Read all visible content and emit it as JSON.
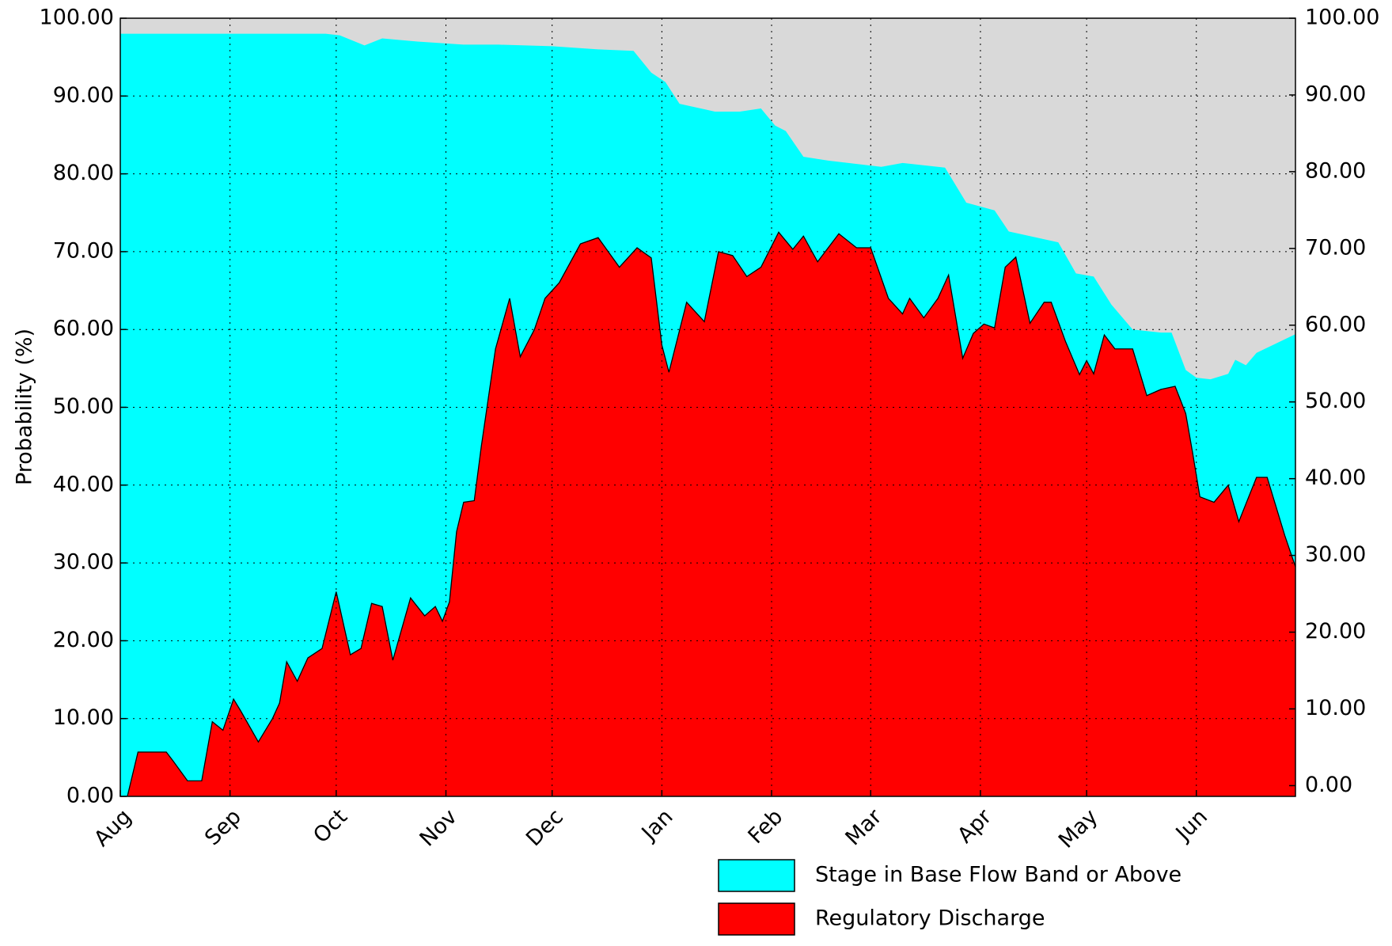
{
  "chart_data": {
    "type": "area",
    "ylabel": "Probability  (%)",
    "xlim": [
      0,
      332
    ],
    "xticks": [
      {
        "value": 0,
        "label": "Aug"
      },
      {
        "value": 31,
        "label": "Sep"
      },
      {
        "value": 61,
        "label": "Oct"
      },
      {
        "value": 92,
        "label": "Nov"
      },
      {
        "value": 122,
        "label": "Dec"
      },
      {
        "value": 153,
        "label": "Jan"
      },
      {
        "value": 184,
        "label": "Feb"
      },
      {
        "value": 212,
        "label": "Mar"
      },
      {
        "value": 243,
        "label": "Apr"
      },
      {
        "value": 273,
        "label": "May"
      },
      {
        "value": 304,
        "label": "Jun"
      }
    ],
    "ylim": [
      0,
      100
    ],
    "yticks": [
      {
        "value": 0,
        "label": "0.00"
      },
      {
        "value": 10,
        "label": "10.00"
      },
      {
        "value": 20,
        "label": "20.00"
      },
      {
        "value": 30,
        "label": "30.00"
      },
      {
        "value": 40,
        "label": "40.00"
      },
      {
        "value": 50,
        "label": "50.00"
      },
      {
        "value": 60,
        "label": "60.00"
      },
      {
        "value": 70,
        "label": "70.00"
      },
      {
        "value": 80,
        "label": "80.00"
      },
      {
        "value": 90,
        "label": "90.00"
      },
      {
        "value": 100,
        "label": "100.00"
      }
    ],
    "y2lim": [
      -1.4,
      100
    ],
    "y2ticks": [
      {
        "value": 0,
        "label": "0.00"
      },
      {
        "value": 10,
        "label": "10.00"
      },
      {
        "value": 20,
        "label": "20.00"
      },
      {
        "value": 30,
        "label": "30.00"
      },
      {
        "value": 40,
        "label": "40.00"
      },
      {
        "value": 50,
        "label": "50.00"
      },
      {
        "value": 60,
        "label": "60.00"
      },
      {
        "value": 70,
        "label": "70.00"
      },
      {
        "value": 80,
        "label": "80.00"
      },
      {
        "value": 90,
        "label": "90.00"
      },
      {
        "value": 100,
        "label": "100.00"
      }
    ],
    "grid": true,
    "background": "#d9d9d9",
    "legend": "below right",
    "series": [
      {
        "name": "Stage in Base Flow Band or Above",
        "color": "#00ffff",
        "x": [
          0,
          58,
          62,
          69,
          74,
          84,
          97,
          107,
          122,
          135,
          145,
          150,
          154,
          158,
          168,
          175,
          181,
          185,
          188,
          193,
          200,
          215,
          221,
          233,
          239,
          247,
          251,
          265,
          270,
          275,
          280,
          286,
          294,
          297,
          301,
          304,
          308,
          313,
          315,
          318,
          321,
          332
        ],
        "values": [
          98,
          98,
          97.8,
          96.5,
          97.4,
          97,
          96.6,
          96.6,
          96.4,
          96,
          95.8,
          93,
          91.8,
          89,
          88,
          88,
          88.4,
          86.2,
          85.5,
          82.2,
          81.7,
          80.9,
          81.4,
          80.8,
          76.3,
          75.3,
          72.6,
          71.2,
          67.2,
          66.8,
          63.2,
          60,
          59.6,
          59.6,
          54.8,
          53.8,
          53.6,
          54.3,
          56.1,
          55.4,
          57,
          59.4
        ]
      },
      {
        "name": "Regulatory Discharge",
        "color": "#ff0000",
        "x": [
          2,
          5,
          13,
          15,
          19,
          23,
          26,
          29,
          32,
          34,
          39,
          43,
          45,
          47,
          50,
          53,
          57,
          61,
          65,
          68,
          71,
          74,
          77,
          82,
          86,
          89,
          91,
          93,
          95,
          97,
          100,
          102,
          106,
          110,
          113,
          117,
          120,
          124,
          130,
          135,
          141,
          146,
          150,
          153,
          155,
          160,
          165,
          169,
          173,
          177,
          181,
          186,
          190,
          193,
          197,
          203,
          208,
          212,
          217,
          221,
          223,
          227,
          231,
          234,
          238,
          241,
          244,
          247,
          250,
          253,
          257,
          261,
          263,
          267,
          271,
          273,
          275,
          278,
          281,
          286,
          290,
          294,
          298,
          301,
          303,
          305,
          309,
          313,
          316,
          321,
          324,
          329,
          332
        ],
        "values": [
          0,
          5.7,
          5.7,
          4.5,
          2,
          2,
          9.6,
          8.5,
          12.5,
          11,
          7,
          10,
          12,
          17.3,
          14.8,
          17.8,
          19,
          26.3,
          18.2,
          19,
          24.8,
          24.4,
          17.5,
          25.5,
          23.2,
          24.4,
          22.5,
          25,
          34,
          37.8,
          38,
          45,
          57.5,
          64,
          56.5,
          60,
          64,
          66,
          71,
          71.8,
          68,
          70.5,
          69.2,
          58,
          54.5,
          63.5,
          61,
          70,
          69.5,
          66.8,
          68,
          72.5,
          70.3,
          72,
          68.7,
          72.3,
          70.5,
          70.5,
          64,
          62,
          64,
          61.5,
          64,
          67,
          56.3,
          59.5,
          60.7,
          60.2,
          68,
          69.3,
          60.8,
          63.5,
          63.5,
          58.5,
          54.2,
          56,
          54.3,
          59.3,
          57.5,
          57.5,
          51.5,
          52.3,
          52.7,
          49.2,
          44,
          38.5,
          37.8,
          40,
          35.3,
          41,
          41,
          33.5,
          29.5
        ]
      }
    ]
  }
}
